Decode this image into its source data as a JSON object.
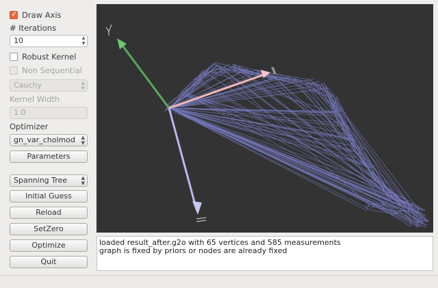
{
  "sidebar": {
    "draw_axis": {
      "label": "Draw Axis",
      "checked": true
    },
    "iterations": {
      "label": "# Iterations",
      "value": "10"
    },
    "robust_kernel": {
      "label": "Robust Kernel",
      "checked": false
    },
    "non_sequential": {
      "label": "Non Sequential",
      "checked": false,
      "enabled": false
    },
    "kernel_type": {
      "value": "Cauchy",
      "enabled": false
    },
    "kernel_width": {
      "label": "Kernel Width",
      "value": "1.0",
      "enabled": false
    },
    "optimizer": {
      "label": "Optimizer",
      "value": "gn_var_cholmod"
    },
    "parameters_button": "Parameters",
    "init_method": {
      "value": "Spanning Tree"
    },
    "initial_guess_button": "Initial Guess",
    "reload_button": "Reload",
    "setzero_button": "SetZero",
    "optimize_button": "Optimize",
    "quit_button": "Quit"
  },
  "log": {
    "lines": [
      "loaded result_after.g2o with 65 vertices and 585 measurements",
      "graph is fixed by priors or nodes are already fixed"
    ]
  },
  "colors": {
    "viewport_bg": "#333333",
    "graph_edges": "#7b7fc9",
    "axis_x": "#f2b8b8",
    "axis_y": "#5aa85a",
    "axis_z": "#b9b9ee",
    "checkbox_accent": "#e9693a"
  }
}
